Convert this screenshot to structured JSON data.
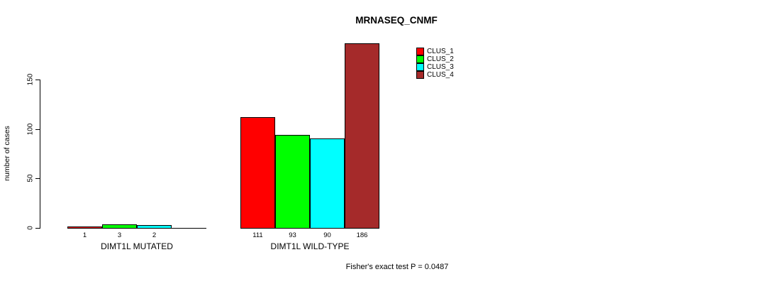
{
  "chart_data": {
    "type": "bar",
    "title": "MRNASEQ_CNMF",
    "ylabel": "number of cases",
    "xlabel": "",
    "categories": [
      "DIMT1L MUTATED",
      "DIMT1L WILD-TYPE"
    ],
    "series": [
      {
        "name": "CLUS_1",
        "color": "#ff0000",
        "values": [
          1,
          111
        ]
      },
      {
        "name": "CLUS_2",
        "color": "#00ff00",
        "values": [
          3,
          93
        ]
      },
      {
        "name": "CLUS_3",
        "color": "#00ffff",
        "values": [
          2,
          90
        ]
      },
      {
        "name": "CLUS_4",
        "color": "#a52a2a",
        "values": [
          0,
          186
        ]
      }
    ],
    "bar_value_labels": [
      [
        "1",
        "3",
        "2",
        ""
      ],
      [
        "111",
        "93",
        "90",
        "186"
      ]
    ],
    "y_ticks": [
      0,
      50,
      100,
      150
    ],
    "ylim": [
      0,
      150
    ],
    "grid": false,
    "legend_position": "top-right",
    "annotation": "Fisher's exact test P = 0.0487"
  }
}
